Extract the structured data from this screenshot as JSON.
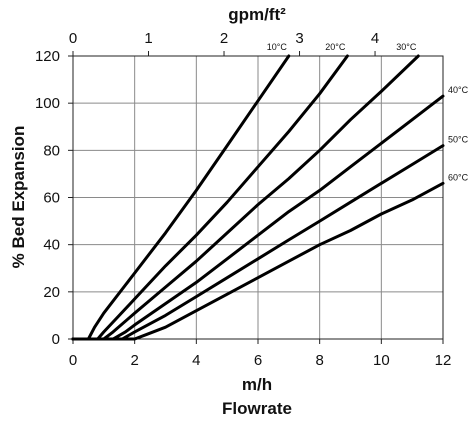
{
  "chart_data": {
    "type": "line",
    "title": "",
    "xlabel": "m/h",
    "xlabel2": "Flowrate",
    "x2label": "gpm/ft²",
    "ylabel": "% Bed Expansion",
    "xlim": [
      0,
      12
    ],
    "ylim": [
      0,
      120
    ],
    "x2lim": [
      0,
      4.9
    ],
    "x_ticks": [
      "0",
      "2",
      "4",
      "6",
      "8",
      "10",
      "12"
    ],
    "x2_ticks": [
      "0",
      "1",
      "2",
      "3",
      "4"
    ],
    "y_ticks": [
      "0",
      "20",
      "40",
      "60",
      "80",
      "100",
      "120"
    ],
    "grid": true,
    "series": [
      {
        "name": "10°C",
        "x": [
          0.5,
          0.7,
          1.0,
          2.0,
          3.0,
          4.0,
          5.0,
          6.0,
          7.0
        ],
        "y": [
          0,
          5,
          11,
          28,
          45,
          63,
          82,
          101,
          120
        ]
      },
      {
        "name": "20°C",
        "x": [
          0.8,
          1.0,
          1.5,
          2.0,
          3.0,
          4.0,
          5.0,
          6.0,
          7.0,
          8.0,
          8.9
        ],
        "y": [
          0,
          3,
          10,
          17,
          31,
          44,
          58,
          73,
          88,
          104,
          120
        ]
      },
      {
        "name": "30°C",
        "x": [
          1.0,
          1.3,
          2.0,
          3.0,
          4.0,
          5.0,
          6.0,
          7.0,
          8.0,
          9.0,
          10.0,
          11.2
        ],
        "y": [
          0,
          3,
          11,
          22,
          33,
          45,
          57,
          68,
          80,
          93,
          105,
          120
        ]
      },
      {
        "name": "40°C",
        "x": [
          1.3,
          1.7,
          2.0,
          3.0,
          4.0,
          5.0,
          6.0,
          7.0,
          8.0,
          9.0,
          10.0,
          11.0,
          12.0
        ],
        "y": [
          0,
          3,
          6,
          15,
          24,
          34,
          44,
          54,
          63,
          73,
          83,
          93,
          103
        ]
      },
      {
        "name": "50°C",
        "x": [
          1.6,
          2.0,
          3.0,
          4.0,
          5.0,
          6.0,
          7.0,
          8.0,
          9.0,
          10.0,
          11.0,
          12.0
        ],
        "y": [
          0,
          3,
          10,
          18,
          26,
          34,
          42,
          50,
          58,
          66,
          74,
          82
        ]
      },
      {
        "name": "60°C",
        "x": [
          2.0,
          2.4,
          3.0,
          4.0,
          5.0,
          6.0,
          7.0,
          8.0,
          9.0,
          10.0,
          11.0,
          12.0
        ],
        "y": [
          0,
          2,
          5,
          12,
          19,
          26,
          33,
          40,
          46,
          53,
          59,
          66
        ]
      }
    ]
  }
}
